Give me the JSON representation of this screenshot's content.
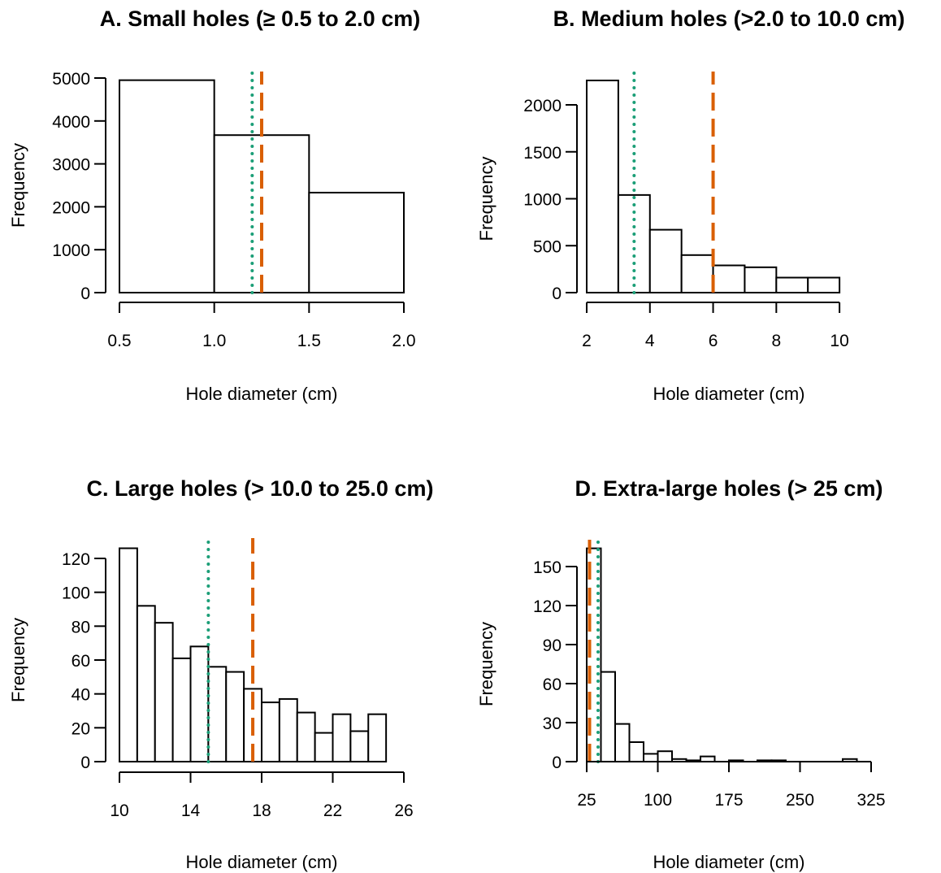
{
  "colors": {
    "median_line": "#1b9e77",
    "mean_line": "#d95f02",
    "bar_fill": "#ffffff",
    "bar_stroke": "#000000"
  },
  "chart_data": [
    {
      "type": "bar",
      "title": "A. Small holes (≥ 0.5 to 2.0 cm)",
      "xlabel": "Hole diameter (cm)",
      "ylabel": "Frequency",
      "xlim": [
        0.5,
        2.0
      ],
      "ylim": [
        0,
        5000
      ],
      "xticks": [
        0.5,
        1.0,
        1.5,
        2.0
      ],
      "xtick_labels": [
        "0.5",
        "1.0",
        "1.5",
        "2.0"
      ],
      "yticks": [
        0,
        1000,
        2000,
        3000,
        4000,
        5000
      ],
      "ytick_labels": [
        "0",
        "1000",
        "2000",
        "3000",
        "4000",
        "5000"
      ],
      "bin_edges": [
        0.5,
        1.0,
        1.5,
        2.0
      ],
      "values": [
        4950,
        3670,
        2330
      ],
      "vlines": [
        {
          "x": 1.2,
          "style": "dotted",
          "color": "#1b9e77"
        },
        {
          "x": 1.25,
          "style": "dashed",
          "color": "#d95f02"
        }
      ]
    },
    {
      "type": "bar",
      "title": "B. Medium holes (>2.0 to 10.0 cm)",
      "xlabel": "Hole diameter (cm)",
      "ylabel": "Frequency",
      "xlim": [
        2,
        11
      ],
      "ylim": [
        0,
        2000
      ],
      "xticks": [
        2,
        4,
        6,
        8,
        10
      ],
      "xtick_labels": [
        "2",
        "4",
        "6",
        "8",
        "10"
      ],
      "yticks": [
        0,
        500,
        1000,
        1500,
        2000
      ],
      "ytick_labels": [
        "0",
        "500",
        "1000",
        "1500",
        "2000"
      ],
      "bin_edges": [
        2,
        3,
        4,
        5,
        6,
        7,
        8,
        9,
        10
      ],
      "values": [
        2260,
        1040,
        670,
        400,
        290,
        270,
        160,
        160
      ],
      "vlines": [
        {
          "x": 3.5,
          "style": "dotted",
          "color": "#1b9e77"
        },
        {
          "x": 6.0,
          "style": "dashed",
          "color": "#d95f02"
        }
      ]
    },
    {
      "type": "bar",
      "title": "C. Large holes (> 10.0 to 25.0 cm)",
      "xlabel": "Hole diameter (cm)",
      "ylabel": "Frequency",
      "xlim": [
        10,
        26
      ],
      "ylim": [
        0,
        120
      ],
      "xticks": [
        10,
        14,
        18,
        22,
        26
      ],
      "xtick_labels": [
        "10",
        "14",
        "18",
        "22",
        "26"
      ],
      "yticks": [
        0,
        20,
        40,
        60,
        80,
        100,
        120
      ],
      "ytick_labels": [
        "0",
        "20",
        "40",
        "60",
        "80",
        "100",
        "120"
      ],
      "bin_edges": [
        10,
        11,
        12,
        13,
        14,
        15,
        16,
        17,
        18,
        19,
        20,
        21,
        22,
        23,
        24,
        25
      ],
      "values": [
        126,
        92,
        82,
        61,
        68,
        56,
        53,
        43,
        35,
        37,
        29,
        17,
        28,
        18,
        28
      ],
      "vlines": [
        {
          "x": 15.0,
          "style": "dotted",
          "color": "#1b9e77"
        },
        {
          "x": 17.5,
          "style": "dashed",
          "color": "#d95f02"
        }
      ]
    },
    {
      "type": "bar",
      "title": "D. Extra-large holes (> 25 cm)",
      "xlabel": "Hole diameter (cm)",
      "ylabel": "Frequency",
      "xlim": [
        25,
        325
      ],
      "ylim": [
        0,
        150
      ],
      "xticks": [
        25,
        100,
        175,
        250,
        325
      ],
      "xtick_labels": [
        "25",
        "100",
        "175",
        "250",
        "325"
      ],
      "yticks": [
        0,
        30,
        60,
        90,
        120,
        150
      ],
      "ytick_labels": [
        "0",
        "30",
        "60",
        "90",
        "120",
        "150"
      ],
      "bin_edges": [
        25,
        40,
        55,
        70,
        85,
        100,
        115,
        130,
        145,
        160,
        175,
        190,
        205,
        220,
        235,
        250,
        265,
        280,
        295,
        310,
        325
      ],
      "values": [
        164,
        69,
        29,
        15,
        6,
        8,
        2,
        1,
        4,
        0,
        1,
        0,
        1,
        1,
        0,
        0,
        0,
        0,
        2,
        0
      ],
      "vlines": [
        {
          "x": 28,
          "style": "dashed",
          "color": "#d95f02"
        },
        {
          "x": 37,
          "style": "dotted",
          "color": "#1b9e77"
        }
      ]
    }
  ]
}
